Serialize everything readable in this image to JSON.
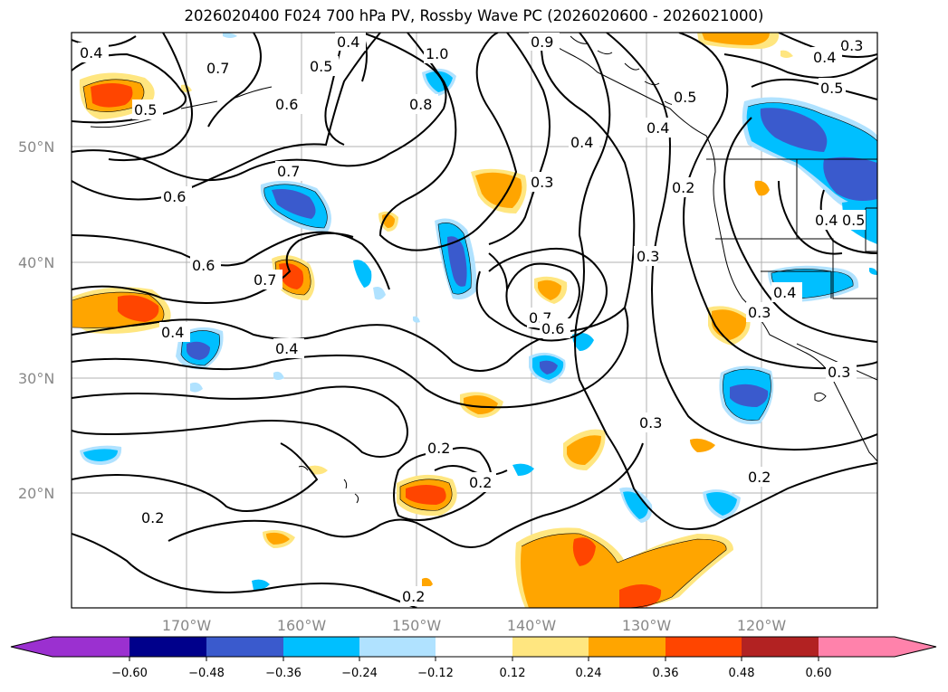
{
  "title": "2026020400 F024 700 hPa PV, Rossby Wave PC (2026020600 - 2026021000)",
  "map": {
    "longitude_labels": [
      "170°W",
      "160°W",
      "150°W",
      "140°W",
      "130°W",
      "120°W"
    ],
    "latitude_labels": [
      "50°N",
      "40°N",
      "30°N",
      "20°N"
    ],
    "contour_labels": [
      {
        "text": "0.4",
        "id": "c1"
      },
      {
        "text": "0.7",
        "id": "c2"
      },
      {
        "text": "0.5",
        "id": "c3"
      },
      {
        "text": "0.6",
        "id": "c4"
      },
      {
        "text": "0.5",
        "id": "c5"
      },
      {
        "text": "1.0",
        "id": "c6"
      },
      {
        "text": "0.8",
        "id": "c7"
      },
      {
        "text": "0.9",
        "id": "c8"
      },
      {
        "text": "0.4",
        "id": "c9"
      },
      {
        "text": "0.3",
        "id": "c10"
      },
      {
        "text": "0.4",
        "id": "c11"
      },
      {
        "text": "0.5",
        "id": "c12"
      },
      {
        "text": "0.7",
        "id": "c13"
      },
      {
        "text": "0.6",
        "id": "c14"
      },
      {
        "text": "0.6",
        "id": "c15"
      },
      {
        "text": "0.7",
        "id": "c16"
      },
      {
        "text": "0.4",
        "id": "c17"
      },
      {
        "text": "0.4",
        "id": "c18"
      },
      {
        "text": "0.3",
        "id": "c19"
      },
      {
        "text": "0.7",
        "id": "c20"
      },
      {
        "text": "0.6",
        "id": "c21"
      },
      {
        "text": "0.3",
        "id": "c22"
      },
      {
        "text": "0.4",
        "id": "c23"
      },
      {
        "text": "0.5",
        "id": "c24"
      },
      {
        "text": "0.2",
        "id": "c25"
      },
      {
        "text": "0.3",
        "id": "c26"
      },
      {
        "text": "0.4",
        "id": "c27"
      },
      {
        "text": "0.3",
        "id": "c28"
      },
      {
        "text": "0.3",
        "id": "c29"
      },
      {
        "text": "0.2",
        "id": "c30"
      },
      {
        "text": "0.2",
        "id": "c31"
      },
      {
        "text": "0.2",
        "id": "c32"
      },
      {
        "text": "0.2",
        "id": "c33"
      },
      {
        "text": "0.2",
        "id": "c34"
      },
      {
        "text": "0.4",
        "id": "c35"
      },
      {
        "text": "0.5",
        "id": "c36"
      },
      {
        "text": "0.4",
        "id": "c37"
      }
    ]
  },
  "colorbar": {
    "tick_labels": [
      "−0.60",
      "−0.48",
      "−0.36",
      "−0.24",
      "−0.12",
      "0.12",
      "0.24",
      "0.36",
      "0.48",
      "0.60"
    ],
    "colors": {
      "below": "#9b30d0",
      "neg060": "#00008b",
      "neg048": "#3a5acd",
      "neg036": "#00bfff",
      "neg024": "#b0e2ff",
      "zero": "#ffffff",
      "pos012": "#ffe680",
      "pos024": "#ffa500",
      "pos036": "#ff4500",
      "pos048": "#b22222",
      "above": "#ff82ab"
    }
  }
}
